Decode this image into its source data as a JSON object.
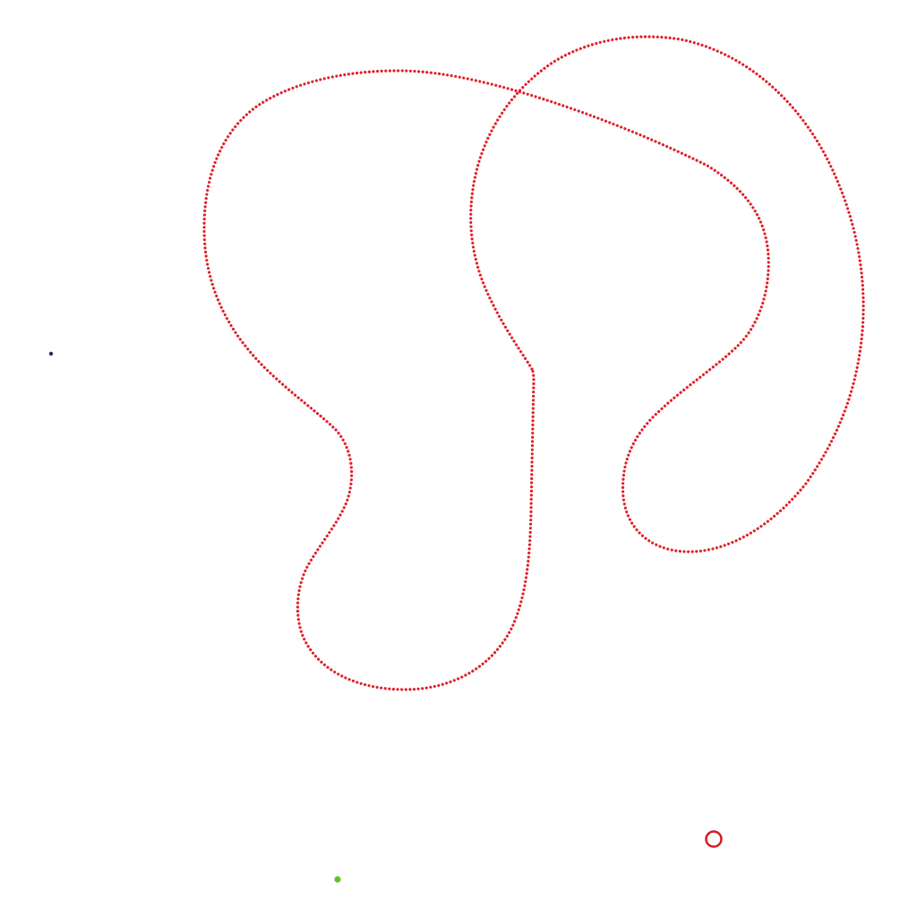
{
  "scene": {
    "background_color": "#ffffff",
    "track": {
      "color": "#e0202a",
      "style": "dotted-outline",
      "shape": "self-intersecting-loop"
    },
    "objects": [
      {
        "name": "player-dot",
        "color": "#1c2f5a",
        "shape": "dot"
      },
      {
        "name": "ring-marker",
        "color": "#d01c24",
        "shape": "ring"
      },
      {
        "name": "green-blob",
        "color": "#5ec424",
        "shape": "dot"
      }
    ]
  }
}
